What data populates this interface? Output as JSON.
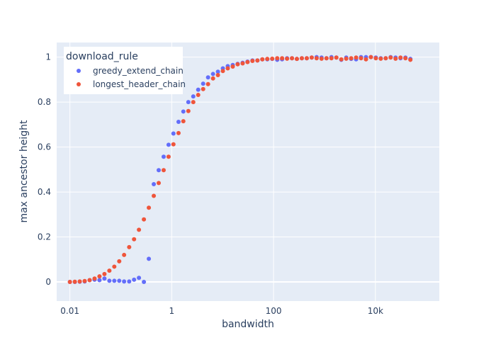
{
  "chart_data": {
    "type": "scatter",
    "title": "",
    "xlabel": "bandwidth",
    "ylabel": "max ancestor height",
    "xscale": "log",
    "xlim": [
      0.0055,
      180000
    ],
    "ylim": [
      -0.085,
      1.065
    ],
    "x_ticks": [
      {
        "value": 0.01,
        "label": "0.01"
      },
      {
        "value": 1,
        "label": "1"
      },
      {
        "value": 100,
        "label": "100"
      },
      {
        "value": 10000,
        "label": "10k"
      }
    ],
    "y_ticks": [
      {
        "value": 0,
        "label": "0"
      },
      {
        "value": 0.2,
        "label": "0.2"
      },
      {
        "value": 0.4,
        "label": "0.4"
      },
      {
        "value": 0.6,
        "label": "0.6"
      },
      {
        "value": 0.8,
        "label": "0.8"
      },
      {
        "value": 1,
        "label": "1"
      }
    ],
    "grid": true,
    "legend": {
      "title": "download_rule",
      "position": "top-left"
    },
    "series": [
      {
        "name": "greedy_extend_chain",
        "color": "#636efa",
        "points": [
          [
            0.01,
            0.0
          ],
          [
            0.0125,
            0.0
          ],
          [
            0.0156,
            0.001
          ],
          [
            0.0195,
            0.002
          ],
          [
            0.0244,
            0.008
          ],
          [
            0.0305,
            0.01
          ],
          [
            0.0381,
            0.008
          ],
          [
            0.0477,
            0.015
          ],
          [
            0.0596,
            0.005
          ],
          [
            0.0745,
            0.005
          ],
          [
            0.0931,
            0.005
          ],
          [
            0.116,
            0.002
          ],
          [
            0.146,
            0.002
          ],
          [
            0.182,
            0.01
          ],
          [
            0.227,
            0.018
          ],
          [
            0.284,
            0.0
          ],
          [
            0.355,
            0.103
          ],
          [
            0.444,
            0.435
          ],
          [
            0.555,
            0.497
          ],
          [
            0.694,
            0.557
          ],
          [
            0.867,
            0.61
          ],
          [
            1.08,
            0.66
          ],
          [
            1.36,
            0.712
          ],
          [
            1.69,
            0.758
          ],
          [
            2.12,
            0.8
          ],
          [
            2.65,
            0.825
          ],
          [
            3.31,
            0.855
          ],
          [
            4.14,
            0.882
          ],
          [
            5.17,
            0.91
          ],
          [
            6.47,
            0.925
          ],
          [
            8.08,
            0.935
          ],
          [
            10.1,
            0.95
          ],
          [
            12.6,
            0.96
          ],
          [
            15.8,
            0.965
          ],
          [
            19.7,
            0.97
          ],
          [
            24.7,
            0.975
          ],
          [
            30.8,
            0.98
          ],
          [
            38.5,
            0.985
          ],
          [
            48.2,
            0.985
          ],
          [
            60.2,
            0.99
          ],
          [
            75.3,
            0.99
          ],
          [
            94.1,
            0.992
          ],
          [
            118,
            0.988
          ],
          [
            147,
            0.99
          ],
          [
            184,
            0.995
          ],
          [
            230,
            0.995
          ],
          [
            287,
            0.992
          ],
          [
            359,
            0.995
          ],
          [
            449,
            0.995
          ],
          [
            561,
            0.998
          ],
          [
            701,
            1.0
          ],
          [
            876,
            0.998
          ],
          [
            1095,
            0.995
          ],
          [
            1369,
            1.0
          ],
          [
            1711,
            0.998
          ],
          [
            2139,
            0.988
          ],
          [
            2674,
            0.998
          ],
          [
            3342,
            0.992
          ],
          [
            4178,
            0.99
          ],
          [
            5222,
            1.0
          ],
          [
            6528,
            1.0
          ],
          [
            8160,
            1.0
          ],
          [
            10200,
            0.998
          ],
          [
            12750,
            0.995
          ],
          [
            15940,
            0.995
          ],
          [
            19920,
            1.0
          ],
          [
            24900,
            0.998
          ],
          [
            31130,
            0.995
          ],
          [
            38910,
            0.998
          ],
          [
            48640,
            0.992
          ]
        ]
      },
      {
        "name": "longest_header_chain",
        "color": "#ef553b",
        "points": [
          [
            0.01,
            0.0
          ],
          [
            0.0125,
            0.001
          ],
          [
            0.0156,
            0.002
          ],
          [
            0.0195,
            0.004
          ],
          [
            0.0244,
            0.008
          ],
          [
            0.0305,
            0.015
          ],
          [
            0.0381,
            0.025
          ],
          [
            0.0477,
            0.035
          ],
          [
            0.0596,
            0.05
          ],
          [
            0.0745,
            0.068
          ],
          [
            0.0931,
            0.092
          ],
          [
            0.116,
            0.12
          ],
          [
            0.146,
            0.155
          ],
          [
            0.182,
            0.19
          ],
          [
            0.227,
            0.232
          ],
          [
            0.284,
            0.278
          ],
          [
            0.355,
            0.33
          ],
          [
            0.444,
            0.383
          ],
          [
            0.555,
            0.44
          ],
          [
            0.694,
            0.497
          ],
          [
            0.867,
            0.557
          ],
          [
            1.08,
            0.612
          ],
          [
            1.36,
            0.662
          ],
          [
            1.69,
            0.715
          ],
          [
            2.12,
            0.76
          ],
          [
            2.65,
            0.8
          ],
          [
            3.31,
            0.832
          ],
          [
            4.14,
            0.858
          ],
          [
            5.17,
            0.88
          ],
          [
            6.47,
            0.905
          ],
          [
            8.08,
            0.92
          ],
          [
            10.1,
            0.938
          ],
          [
            12.6,
            0.95
          ],
          [
            15.8,
            0.958
          ],
          [
            19.7,
            0.968
          ],
          [
            24.7,
            0.972
          ],
          [
            30.8,
            0.978
          ],
          [
            38.5,
            0.983
          ],
          [
            48.2,
            0.985
          ],
          [
            60.2,
            0.99
          ],
          [
            75.3,
            0.992
          ],
          [
            94.1,
            0.993
          ],
          [
            118,
            0.995
          ],
          [
            147,
            0.995
          ],
          [
            184,
            0.993
          ],
          [
            230,
            0.995
          ],
          [
            287,
            0.992
          ],
          [
            359,
            0.995
          ],
          [
            449,
            0.995
          ],
          [
            561,
            0.998
          ],
          [
            701,
            0.995
          ],
          [
            876,
            0.993
          ],
          [
            1095,
            0.995
          ],
          [
            1369,
            0.995
          ],
          [
            1711,
            0.998
          ],
          [
            2139,
            0.99
          ],
          [
            2674,
            0.993
          ],
          [
            3342,
            0.995
          ],
          [
            4178,
            0.998
          ],
          [
            5222,
            0.995
          ],
          [
            6528,
            0.99
          ],
          [
            8160,
            1.0
          ],
          [
            10200,
            0.995
          ],
          [
            12750,
            0.993
          ],
          [
            15940,
            0.995
          ],
          [
            19920,
            0.998
          ],
          [
            24900,
            0.993
          ],
          [
            31130,
            0.998
          ],
          [
            38910,
            0.995
          ],
          [
            48640,
            0.988
          ]
        ]
      }
    ]
  }
}
